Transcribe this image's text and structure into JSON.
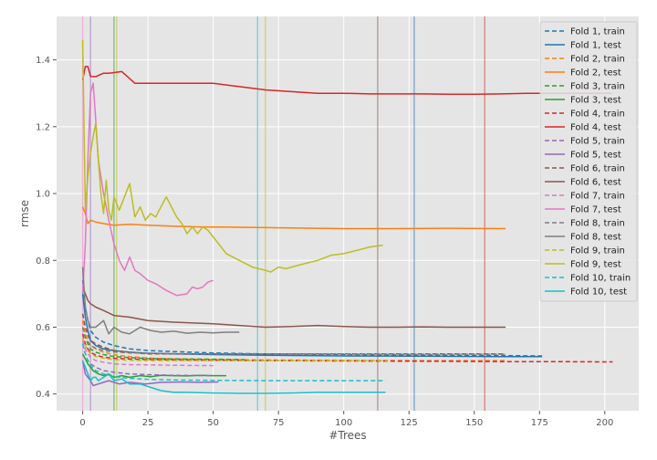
{
  "chart_data": {
    "type": "line",
    "title": "",
    "xlabel": "#Trees",
    "ylabel": "rmse",
    "xlim": [
      -10,
      213
    ],
    "ylim": [
      0.35,
      1.53
    ],
    "xticks": [
      0,
      25,
      50,
      75,
      100,
      125,
      150,
      175,
      200
    ],
    "yticks": [
      0.4,
      0.6,
      0.8,
      1.0,
      1.2,
      1.4
    ],
    "ytick_labels": [
      "0.4",
      "0.6",
      "0.8",
      "1.0",
      "1.2",
      "1.4"
    ],
    "grid": true,
    "legend_position": "top-right",
    "series": [
      {
        "name": "Fold 1, train",
        "color": "#1f77b4",
        "dash": true,
        "x": [
          0,
          1,
          2,
          3,
          5,
          8,
          12,
          18,
          25,
          35,
          50,
          70,
          100,
          130,
          160,
          176
        ],
        "y": [
          0.74,
          0.66,
          0.62,
          0.59,
          0.57,
          0.555,
          0.545,
          0.535,
          0.53,
          0.527,
          0.523,
          0.52,
          0.518,
          0.516,
          0.515,
          0.514
        ]
      },
      {
        "name": "Fold 1, test",
        "color": "#1f77b4",
        "dash": false,
        "x": [
          0,
          1,
          2,
          3,
          5,
          8,
          12,
          18,
          25,
          35,
          50,
          70,
          100,
          130,
          160,
          176
        ],
        "y": [
          0.7,
          0.63,
          0.59,
          0.56,
          0.545,
          0.535,
          0.53,
          0.525,
          0.522,
          0.52,
          0.518,
          0.516,
          0.514,
          0.513,
          0.512,
          0.512
        ]
      },
      {
        "name": "Fold 2, train",
        "color": "#ff7f0e",
        "dash": true,
        "x": [
          0,
          1,
          2,
          3,
          5,
          8,
          12,
          18,
          25,
          35,
          50,
          70,
          100,
          130,
          162
        ],
        "y": [
          0.62,
          0.58,
          0.56,
          0.545,
          0.535,
          0.525,
          0.517,
          0.512,
          0.508,
          0.505,
          0.503,
          0.502,
          0.501,
          0.5,
          0.5
        ]
      },
      {
        "name": "Fold 2, test",
        "color": "#ff7f0e",
        "dash": false,
        "x": [
          0,
          1,
          2,
          3,
          5,
          8,
          12,
          18,
          25,
          35,
          45,
          60,
          80,
          100,
          120,
          140,
          162
        ],
        "y": [
          0.96,
          0.94,
          0.91,
          0.92,
          0.915,
          0.91,
          0.905,
          0.908,
          0.905,
          0.902,
          0.9,
          0.899,
          0.897,
          0.895,
          0.895,
          0.896,
          0.895
        ]
      },
      {
        "name": "Fold 3, train",
        "color": "#2ca02c",
        "dash": true,
        "x": [
          0,
          1,
          2,
          3,
          5,
          8,
          12,
          18,
          25,
          35,
          50,
          62
        ],
        "y": [
          0.6,
          0.57,
          0.55,
          0.535,
          0.525,
          0.518,
          0.512,
          0.509,
          0.506,
          0.505,
          0.504,
          0.503
        ]
      },
      {
        "name": "Fold 3, test",
        "color": "#2ca02c",
        "dash": false,
        "x": [
          0,
          2,
          4,
          6,
          8,
          10,
          12,
          15,
          18,
          22,
          26,
          30,
          35,
          40,
          45,
          50,
          55
        ],
        "y": [
          0.52,
          0.49,
          0.47,
          0.46,
          0.455,
          0.46,
          0.45,
          0.455,
          0.45,
          0.455,
          0.452,
          0.456,
          0.455,
          0.454,
          0.456,
          0.455,
          0.455
        ]
      },
      {
        "name": "Fold 4, train",
        "color": "#d62728",
        "dash": true,
        "x": [
          0,
          1,
          2,
          3,
          5,
          8,
          12,
          18,
          25,
          35,
          50,
          70,
          100,
          130,
          160,
          180,
          200,
          203
        ],
        "y": [
          0.58,
          0.55,
          0.535,
          0.525,
          0.516,
          0.51,
          0.507,
          0.505,
          0.503,
          0.502,
          0.501,
          0.5,
          0.499,
          0.498,
          0.497,
          0.497,
          0.496,
          0.496
        ]
      },
      {
        "name": "Fold 4, test",
        "color": "#d62728",
        "dash": false,
        "x": [
          0,
          1,
          2,
          3,
          5,
          8,
          10,
          15,
          20,
          25,
          30,
          40,
          50,
          60,
          70,
          80,
          90,
          100,
          110,
          120,
          130,
          140,
          150,
          160,
          170,
          180,
          190,
          200,
          203
        ],
        "y": [
          1.34,
          1.38,
          1.38,
          1.35,
          1.35,
          1.36,
          1.36,
          1.365,
          1.33,
          1.33,
          1.33,
          1.33,
          1.33,
          1.32,
          1.31,
          1.305,
          1.3,
          1.3,
          1.298,
          1.298,
          1.298,
          1.297,
          1.297,
          1.298,
          1.3,
          1.3,
          1.3,
          1.3,
          1.3
        ]
      },
      {
        "name": "Fold 5, train",
        "color": "#9467bd",
        "dash": true,
        "x": [
          0,
          1,
          2,
          3,
          5,
          8,
          12,
          18,
          25,
          35,
          50
        ],
        "y": [
          0.55,
          0.52,
          0.5,
          0.49,
          0.48,
          0.47,
          0.465,
          0.46,
          0.458,
          0.456,
          0.455
        ]
      },
      {
        "name": "Fold 5, test",
        "color": "#9467bd",
        "dash": false,
        "x": [
          0,
          1,
          2,
          3,
          4,
          6,
          8,
          10,
          14,
          18,
          24,
          30,
          38,
          45,
          52
        ],
        "y": [
          0.5,
          0.46,
          0.45,
          0.44,
          0.425,
          0.43,
          0.435,
          0.44,
          0.43,
          0.435,
          0.43,
          0.435,
          0.436,
          0.435,
          0.436
        ]
      },
      {
        "name": "Fold 6, train",
        "color": "#8c564b",
        "dash": true,
        "x": [
          0,
          1,
          2,
          3,
          5,
          8,
          12,
          18,
          25,
          35,
          50,
          70,
          100,
          130,
          162
        ],
        "y": [
          0.64,
          0.6,
          0.575,
          0.56,
          0.55,
          0.54,
          0.53,
          0.525,
          0.52,
          0.52,
          0.52,
          0.52,
          0.52,
          0.52,
          0.52
        ]
      },
      {
        "name": "Fold 6, test",
        "color": "#8c564b",
        "dash": false,
        "x": [
          0,
          1,
          2,
          3,
          5,
          8,
          12,
          18,
          25,
          35,
          50,
          60,
          70,
          80,
          90,
          100,
          110,
          120,
          130,
          140,
          150,
          162
        ],
        "y": [
          0.72,
          0.7,
          0.68,
          0.67,
          0.66,
          0.65,
          0.635,
          0.63,
          0.62,
          0.615,
          0.61,
          0.605,
          0.6,
          0.602,
          0.605,
          0.602,
          0.6,
          0.6,
          0.601,
          0.6,
          0.6,
          0.6
        ]
      },
      {
        "name": "Fold 7, train",
        "color": "#e377c2",
        "dash": true,
        "x": [
          0,
          1,
          2,
          3,
          5,
          8,
          12,
          18,
          25,
          35,
          50
        ],
        "y": [
          0.56,
          0.535,
          0.52,
          0.51,
          0.5,
          0.495,
          0.49,
          0.488,
          0.487,
          0.486,
          0.485
        ]
      },
      {
        "name": "Fold 7, test",
        "color": "#e377c2",
        "dash": false,
        "x": [
          0,
          1,
          2,
          3,
          4,
          5,
          6,
          8,
          10,
          12,
          14,
          16,
          18,
          20,
          22,
          25,
          28,
          32,
          36,
          40,
          42,
          44,
          46,
          48,
          50
        ],
        "y": [
          0.7,
          0.85,
          1.1,
          1.3,
          1.33,
          1.22,
          1.1,
          1.0,
          0.92,
          0.85,
          0.8,
          0.77,
          0.81,
          0.77,
          0.76,
          0.74,
          0.73,
          0.71,
          0.695,
          0.7,
          0.72,
          0.715,
          0.72,
          0.735,
          0.74
        ]
      },
      {
        "name": "Fold 8, train",
        "color": "#7f7f7f",
        "dash": true,
        "x": [
          0,
          1,
          2,
          3,
          5,
          8,
          12,
          18,
          25,
          35,
          50,
          70,
          100,
          130,
          162
        ],
        "y": [
          0.6,
          0.57,
          0.555,
          0.545,
          0.537,
          0.53,
          0.526,
          0.523,
          0.522,
          0.521,
          0.52,
          0.52,
          0.52,
          0.519,
          0.519
        ]
      },
      {
        "name": "Fold 8, test",
        "color": "#7f7f7f",
        "dash": false,
        "x": [
          0,
          1,
          2,
          3,
          5,
          8,
          10,
          12,
          15,
          18,
          22,
          26,
          30,
          35,
          40,
          45,
          50,
          55,
          60
        ],
        "y": [
          0.78,
          0.66,
          0.62,
          0.6,
          0.6,
          0.62,
          0.58,
          0.6,
          0.585,
          0.58,
          0.6,
          0.59,
          0.585,
          0.588,
          0.582,
          0.585,
          0.583,
          0.585,
          0.585
        ]
      },
      {
        "name": "Fold 9, train",
        "color": "#bcbd22",
        "dash": true,
        "x": [
          0,
          1,
          2,
          3,
          5,
          8,
          12,
          18,
          25,
          35,
          50,
          70,
          90,
          117
        ],
        "y": [
          0.57,
          0.545,
          0.53,
          0.52,
          0.512,
          0.507,
          0.503,
          0.501,
          0.5,
          0.5,
          0.5,
          0.5,
          0.5,
          0.5
        ]
      },
      {
        "name": "Fold 9, test",
        "color": "#bcbd22",
        "dash": false,
        "x": [
          0,
          1,
          2,
          3,
          4,
          5,
          6,
          7,
          8,
          9,
          10,
          11,
          12,
          14,
          16,
          18,
          20,
          22,
          24,
          26,
          28,
          30,
          32,
          34,
          36,
          38,
          40,
          42,
          44,
          46,
          48,
          50,
          55,
          60,
          65,
          70,
          72,
          75,
          78,
          80,
          85,
          90,
          95,
          100,
          105,
          110,
          115
        ],
        "y": [
          1.46,
          0.95,
          1.05,
          1.12,
          1.17,
          1.21,
          1.1,
          1.0,
          0.94,
          1.04,
          0.95,
          0.92,
          0.99,
          0.95,
          0.99,
          1.03,
          0.93,
          0.96,
          0.92,
          0.94,
          0.93,
          0.96,
          0.99,
          0.96,
          0.93,
          0.91,
          0.88,
          0.9,
          0.88,
          0.9,
          0.89,
          0.87,
          0.82,
          0.8,
          0.78,
          0.77,
          0.765,
          0.78,
          0.775,
          0.78,
          0.79,
          0.8,
          0.815,
          0.82,
          0.83,
          0.84,
          0.845
        ]
      },
      {
        "name": "Fold 10, train",
        "color": "#17becf",
        "dash": true,
        "x": [
          0,
          1,
          2,
          3,
          5,
          8,
          12,
          18,
          25,
          35,
          50,
          70,
          90,
          116
        ],
        "y": [
          0.55,
          0.52,
          0.5,
          0.485,
          0.47,
          0.46,
          0.452,
          0.447,
          0.444,
          0.442,
          0.441,
          0.44,
          0.44,
          0.44
        ]
      },
      {
        "name": "Fold 10, test",
        "color": "#17becf",
        "dash": false,
        "x": [
          0,
          1,
          2,
          3,
          4,
          5,
          6,
          8,
          10,
          12,
          15,
          18,
          22,
          26,
          30,
          35,
          40,
          50,
          60,
          70,
          80,
          90,
          100,
          110,
          116
        ],
        "y": [
          0.5,
          0.48,
          0.46,
          0.44,
          0.45,
          0.45,
          0.44,
          0.45,
          0.46,
          0.44,
          0.445,
          0.43,
          0.43,
          0.42,
          0.41,
          0.405,
          0.405,
          0.403,
          0.402,
          0.402,
          0.403,
          0.405,
          0.405,
          0.405,
          0.405
        ]
      }
    ],
    "vlines": [
      {
        "x": 0,
        "color": "#e377c2"
      },
      {
        "x": 3,
        "color": "#9467bd"
      },
      {
        "x": 12,
        "color": "#2ca02c"
      },
      {
        "x": 13,
        "color": "#bcbd22"
      },
      {
        "x": 67,
        "color": "#17becf"
      },
      {
        "x": 70,
        "color": "#bcbd22"
      },
      {
        "x": 113,
        "color": "#8c564b"
      },
      {
        "x": 127,
        "color": "#1f77b4"
      },
      {
        "x": 154,
        "color": "#d62728"
      }
    ]
  }
}
